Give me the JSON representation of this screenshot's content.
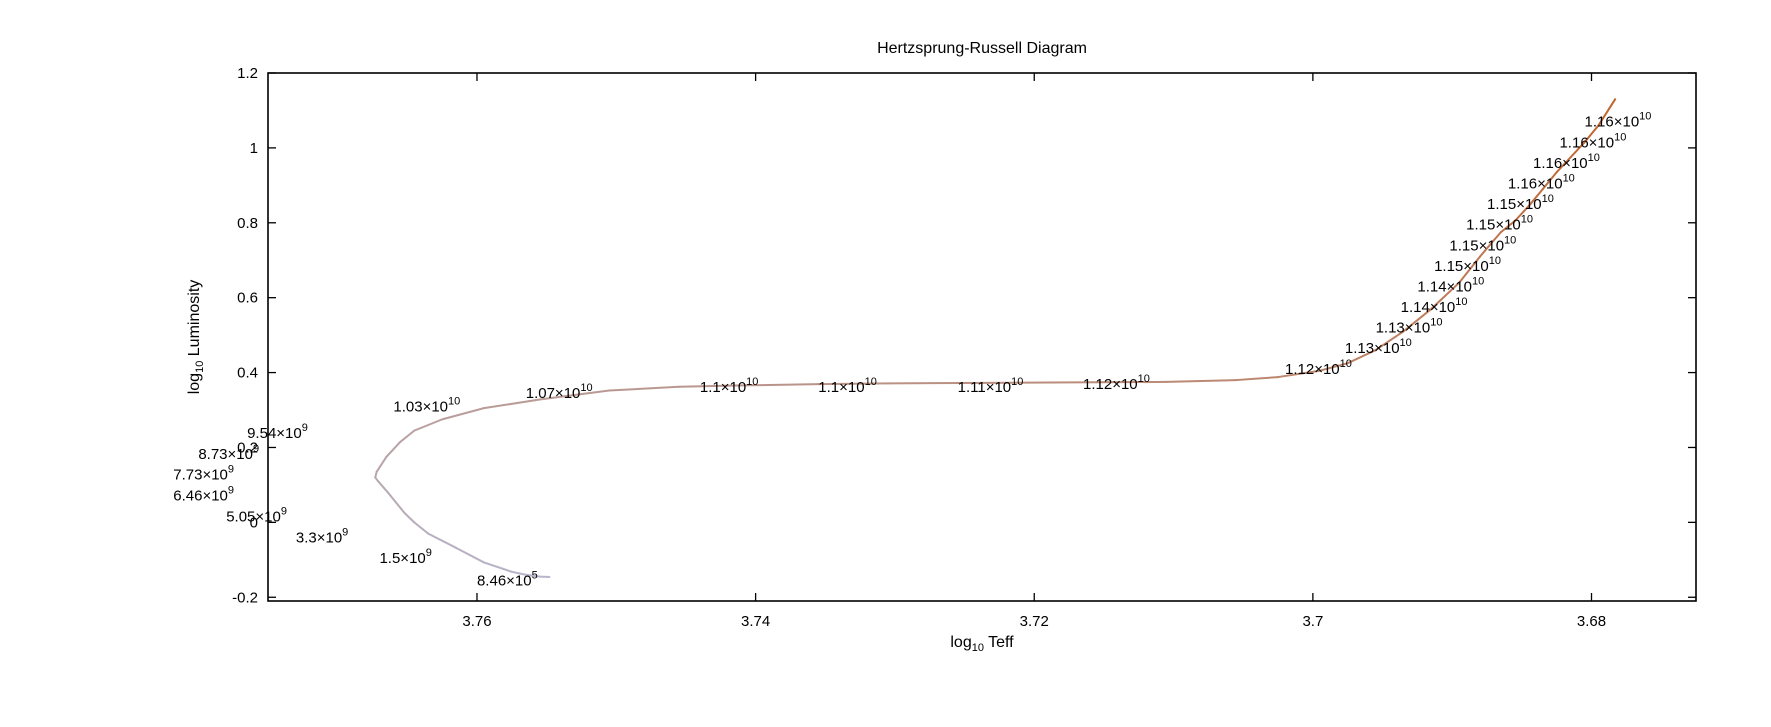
{
  "chart_data": {
    "type": "line",
    "title": "Hertzsprung-Russell Diagram",
    "xlabel": {
      "base": "log",
      "sub": "10",
      "rest": " Teff"
    },
    "ylabel": {
      "base": "log",
      "sub": "10",
      "rest": " Luminosity"
    },
    "xlim": [
      3.775,
      3.6725
    ],
    "ylim": [
      -0.21,
      1.2
    ],
    "x_reversed": true,
    "grid": false,
    "x_ticks": [
      {
        "value": 3.76,
        "label": "3.76"
      },
      {
        "value": 3.74,
        "label": "3.74"
      },
      {
        "value": 3.72,
        "label": "3.72"
      },
      {
        "value": 3.7,
        "label": "3.7"
      },
      {
        "value": 3.68,
        "label": "3.68"
      }
    ],
    "y_ticks": [
      {
        "value": -0.2,
        "label": "-0.2"
      },
      {
        "value": 0,
        "label": "0"
      },
      {
        "value": 0.2,
        "label": "0.2"
      },
      {
        "value": 0.4,
        "label": "0.4"
      },
      {
        "value": 0.6,
        "label": "0.6"
      },
      {
        "value": 0.8,
        "label": "0.8"
      },
      {
        "value": 1.0,
        "label": "1"
      },
      {
        "value": 1.2,
        "label": "1.2"
      }
    ],
    "colors": {
      "start": "#b6b6cc",
      "end": "#c0632a",
      "frame": "#000000"
    },
    "track": {
      "x": [
        3.7548,
        3.7555,
        3.7565,
        3.7575,
        3.7595,
        3.7615,
        3.7635,
        3.7645,
        3.7652,
        3.7664,
        3.7671,
        3.7673,
        3.7672,
        3.7665,
        3.7655,
        3.7645,
        3.7625,
        3.7595,
        3.7555,
        3.7505,
        3.7455,
        3.7405,
        3.7355,
        3.7305,
        3.7255,
        3.7205,
        3.7155,
        3.7105,
        3.7055,
        3.7025,
        3.6995,
        3.6975,
        3.6955,
        3.6935,
        3.6915,
        3.6895,
        3.688,
        3.6872,
        3.6865,
        3.6855,
        3.6845,
        3.6835,
        3.6825,
        3.6815,
        3.6805,
        3.6795,
        3.6783
      ],
      "y": [
        -0.146,
        -0.145,
        -0.14,
        -0.132,
        -0.107,
        -0.068,
        -0.03,
        0.0,
        0.025,
        0.08,
        0.11,
        0.12,
        0.135,
        0.175,
        0.215,
        0.245,
        0.275,
        0.305,
        0.328,
        0.352,
        0.362,
        0.366,
        0.369,
        0.371,
        0.372,
        0.373,
        0.374,
        0.375,
        0.38,
        0.388,
        0.405,
        0.425,
        0.46,
        0.51,
        0.57,
        0.64,
        0.71,
        0.745,
        0.775,
        0.805,
        0.845,
        0.89,
        0.935,
        0.975,
        1.015,
        1.06,
        1.13
      ]
    },
    "annotations": [
      {
        "mant": "8.46",
        "exp": "5",
        "x": 3.76,
        "y": -0.155
      },
      {
        "mant": "1.5",
        "exp": "9",
        "x": 3.767,
        "y": -0.095
      },
      {
        "mant": "3.3",
        "exp": "9",
        "x": 3.773,
        "y": -0.04
      },
      {
        "mant": "5.05",
        "exp": "9",
        "x": 3.778,
        "y": 0.015
      },
      {
        "mant": "6.46",
        "exp": "9",
        "x": 3.7818,
        "y": 0.072
      },
      {
        "mant": "7.73",
        "exp": "9",
        "x": 3.7818,
        "y": 0.128
      },
      {
        "mant": "8.73",
        "exp": "9",
        "x": 3.78,
        "y": 0.183
      },
      {
        "mant": "9.54",
        "exp": "9",
        "x": 3.7765,
        "y": 0.238
      },
      {
        "mant": "1.03",
        "exp": "10",
        "x": 3.766,
        "y": 0.31
      },
      {
        "mant": "1.07",
        "exp": "10",
        "x": 3.7565,
        "y": 0.345
      },
      {
        "mant": "1.1",
        "exp": "10",
        "x": 3.744,
        "y": 0.362
      },
      {
        "mant": "1.1",
        "exp": "10",
        "x": 3.7355,
        "y": 0.362
      },
      {
        "mant": "1.11",
        "exp": "10",
        "x": 3.7255,
        "y": 0.362
      },
      {
        "mant": "1.12",
        "exp": "10",
        "x": 3.7165,
        "y": 0.37
      },
      {
        "mant": "1.12",
        "exp": "10",
        "x": 3.702,
        "y": 0.41
      },
      {
        "mant": "1.13",
        "exp": "10",
        "x": 3.6977,
        "y": 0.465
      },
      {
        "mant": "1.13",
        "exp": "10",
        "x": 3.6955,
        "y": 0.52
      },
      {
        "mant": "1.14",
        "exp": "10",
        "x": 3.6937,
        "y": 0.575
      },
      {
        "mant": "1.14",
        "exp": "10",
        "x": 3.6925,
        "y": 0.63
      },
      {
        "mant": "1.15",
        "exp": "10",
        "x": 3.6913,
        "y": 0.685
      },
      {
        "mant": "1.15",
        "exp": "10",
        "x": 3.6902,
        "y": 0.74
      },
      {
        "mant": "1.15",
        "exp": "10",
        "x": 3.689,
        "y": 0.795
      },
      {
        "mant": "1.15",
        "exp": "10",
        "x": 3.6875,
        "y": 0.85
      },
      {
        "mant": "1.16",
        "exp": "10",
        "x": 3.686,
        "y": 0.905
      },
      {
        "mant": "1.16",
        "exp": "10",
        "x": 3.6842,
        "y": 0.96
      },
      {
        "mant": "1.16",
        "exp": "10",
        "x": 3.6823,
        "y": 1.015
      },
      {
        "mant": "1.16",
        "exp": "10",
        "x": 3.6805,
        "y": 1.07
      }
    ]
  }
}
